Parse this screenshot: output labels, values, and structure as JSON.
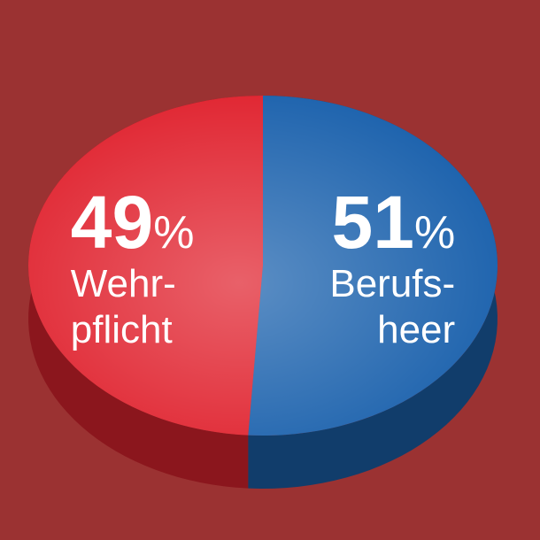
{
  "chart_data": {
    "type": "pie",
    "categories": [
      "Wehr-\npflicht",
      "Berufs-\nheer"
    ],
    "values": [
      49,
      51
    ],
    "value_labels": [
      "49%",
      "51%"
    ],
    "colors": [
      "#e0232f",
      "#1c62ad"
    ]
  }
}
